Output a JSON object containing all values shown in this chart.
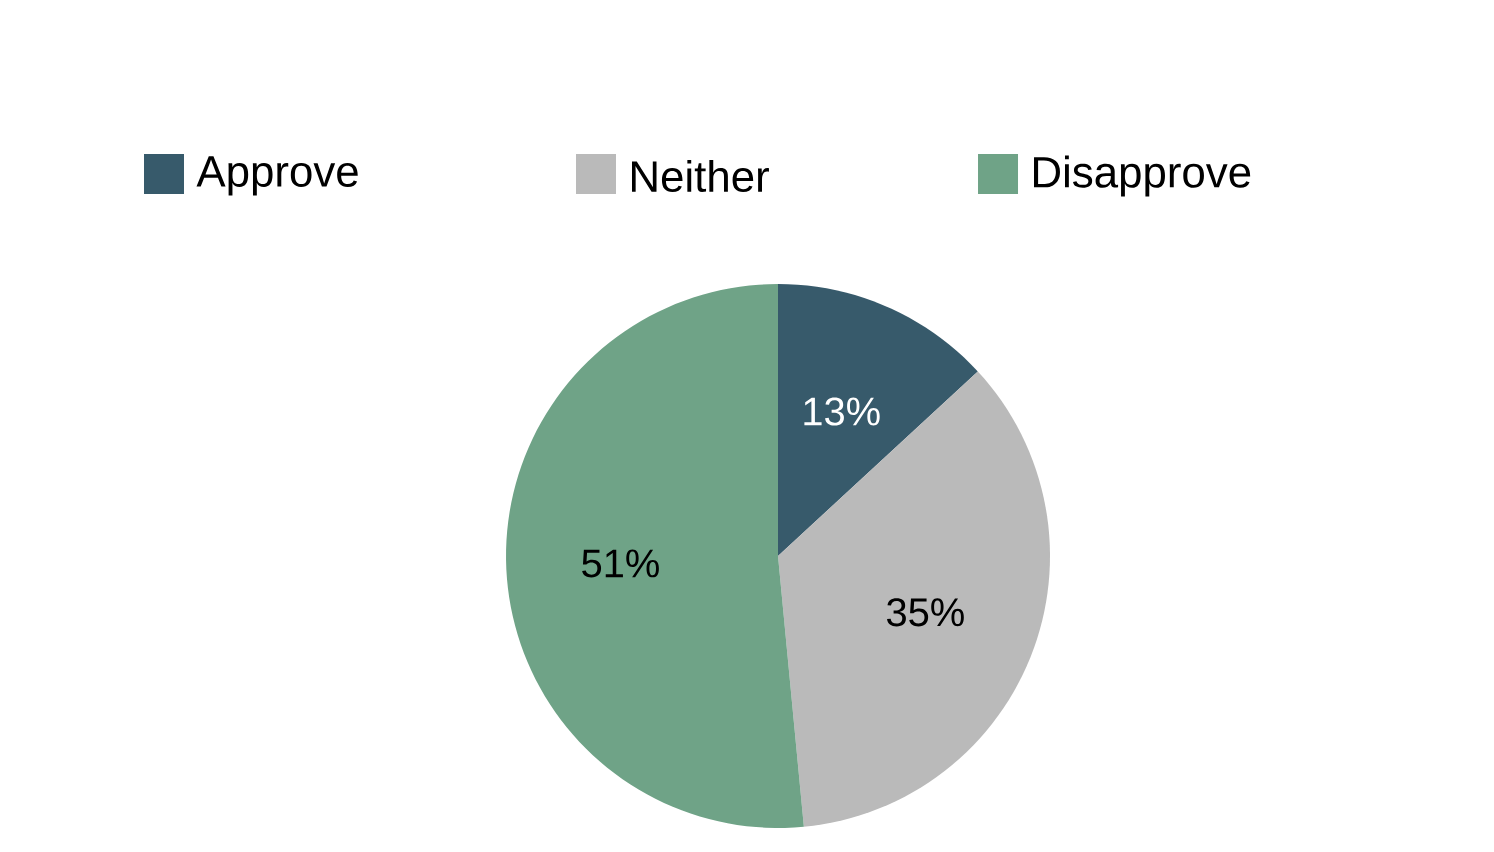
{
  "chart_data": {
    "type": "pie",
    "categories": [
      "Approve",
      "Neither",
      "Disapprove"
    ],
    "values": [
      13,
      35,
      51
    ],
    "colors": [
      "#375a6b",
      "#bababa",
      "#6fa387"
    ],
    "value_labels": [
      "13%",
      "35%",
      "51%"
    ],
    "legend": "top"
  }
}
